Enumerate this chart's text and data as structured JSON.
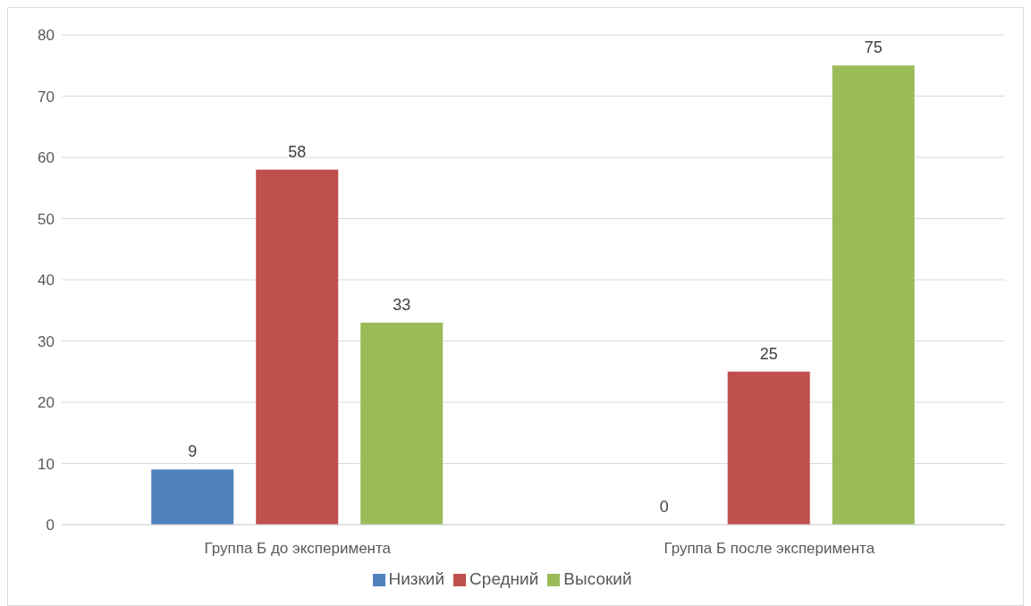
{
  "chart_data": {
    "type": "bar",
    "categories": [
      "Группа Б до эксперимента",
      "Группа Б после эксперимента"
    ],
    "series": [
      {
        "name": "Низкий",
        "color": "#4f81bd",
        "values": [
          9,
          0
        ]
      },
      {
        "name": "Средний",
        "color": "#c0504d",
        "values": [
          58,
          25
        ]
      },
      {
        "name": "Высокий",
        "color": "#9bbb59",
        "values": [
          33,
          75
        ]
      }
    ],
    "ylim": [
      0,
      80
    ],
    "yticks": [
      0,
      10,
      20,
      30,
      40,
      50,
      60,
      70,
      80
    ],
    "grid": "y",
    "legend": "bottom",
    "data_labels": true
  }
}
